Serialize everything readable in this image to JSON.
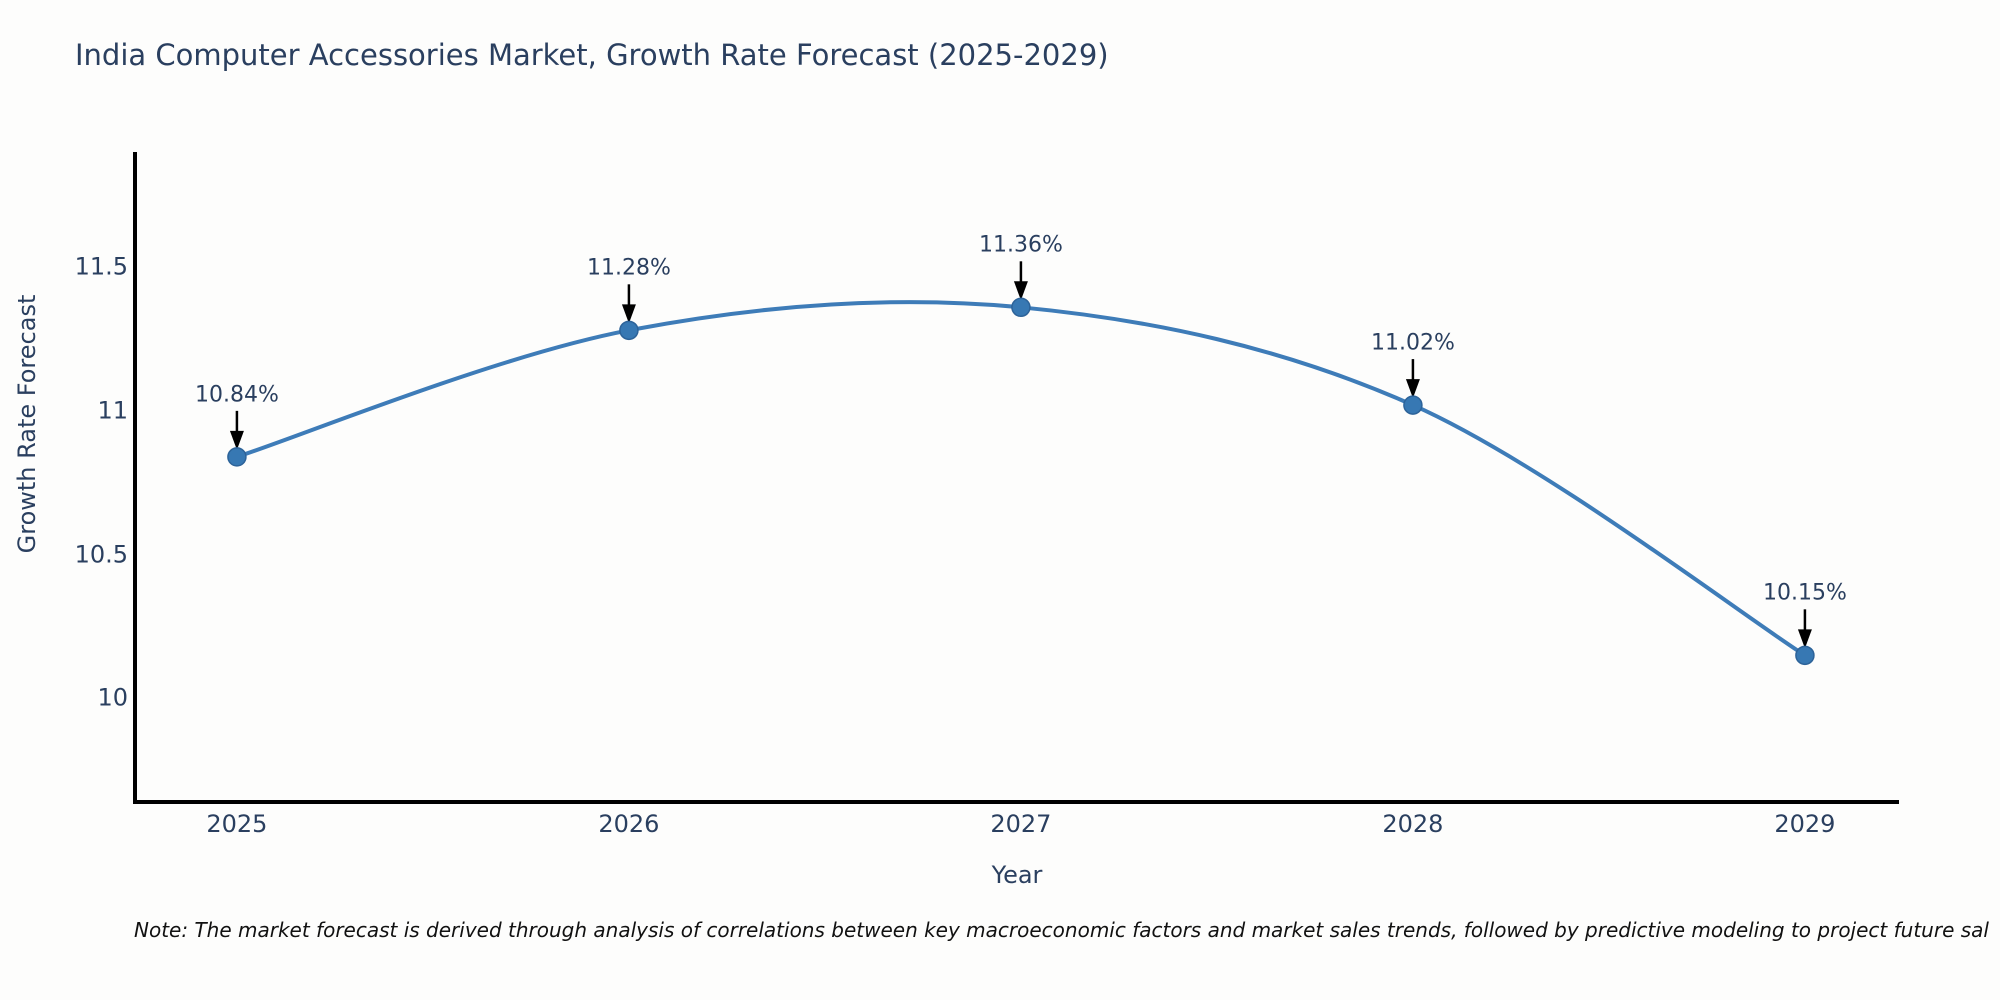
{
  "note": "Note: The market forecast is derived through analysis of correlations between key macroeconomic factors and market sales trends, followed by predictive modeling to project future sal",
  "chart_data": {
    "type": "line",
    "title": "India Computer Accessories Market, Growth Rate Forecast (2025-2029)",
    "xlabel": "Year",
    "ylabel": "Growth Rate Forecast",
    "x": [
      2025,
      2026,
      2027,
      2028,
      2029
    ],
    "series": [
      {
        "name": "Growth Rate Forecast",
        "values": [
          10.84,
          11.28,
          11.36,
          11.02,
          10.15
        ]
      }
    ],
    "point_labels": [
      "10.84%",
      "11.28%",
      "11.36%",
      "11.02%",
      "10.15%"
    ],
    "xticks": [
      "2025",
      "2026",
      "2027",
      "2028",
      "2029"
    ],
    "yticks": [
      10,
      10.5,
      11,
      11.5
    ],
    "ytick_labels": [
      "10",
      "10.5",
      "11",
      "11.5"
    ],
    "xlim": [
      2024.74,
      2029.24
    ],
    "ylim": [
      9.64,
      11.9
    ],
    "line_shape": "spline",
    "grid": false,
    "legend": "none",
    "colors": {
      "line": "#3e7cb8",
      "marker_fill": "#3778b3",
      "marker_edge": "#2d6399",
      "spine": "#000000",
      "arrow": "#000000",
      "text": "#2a3f5f"
    }
  }
}
